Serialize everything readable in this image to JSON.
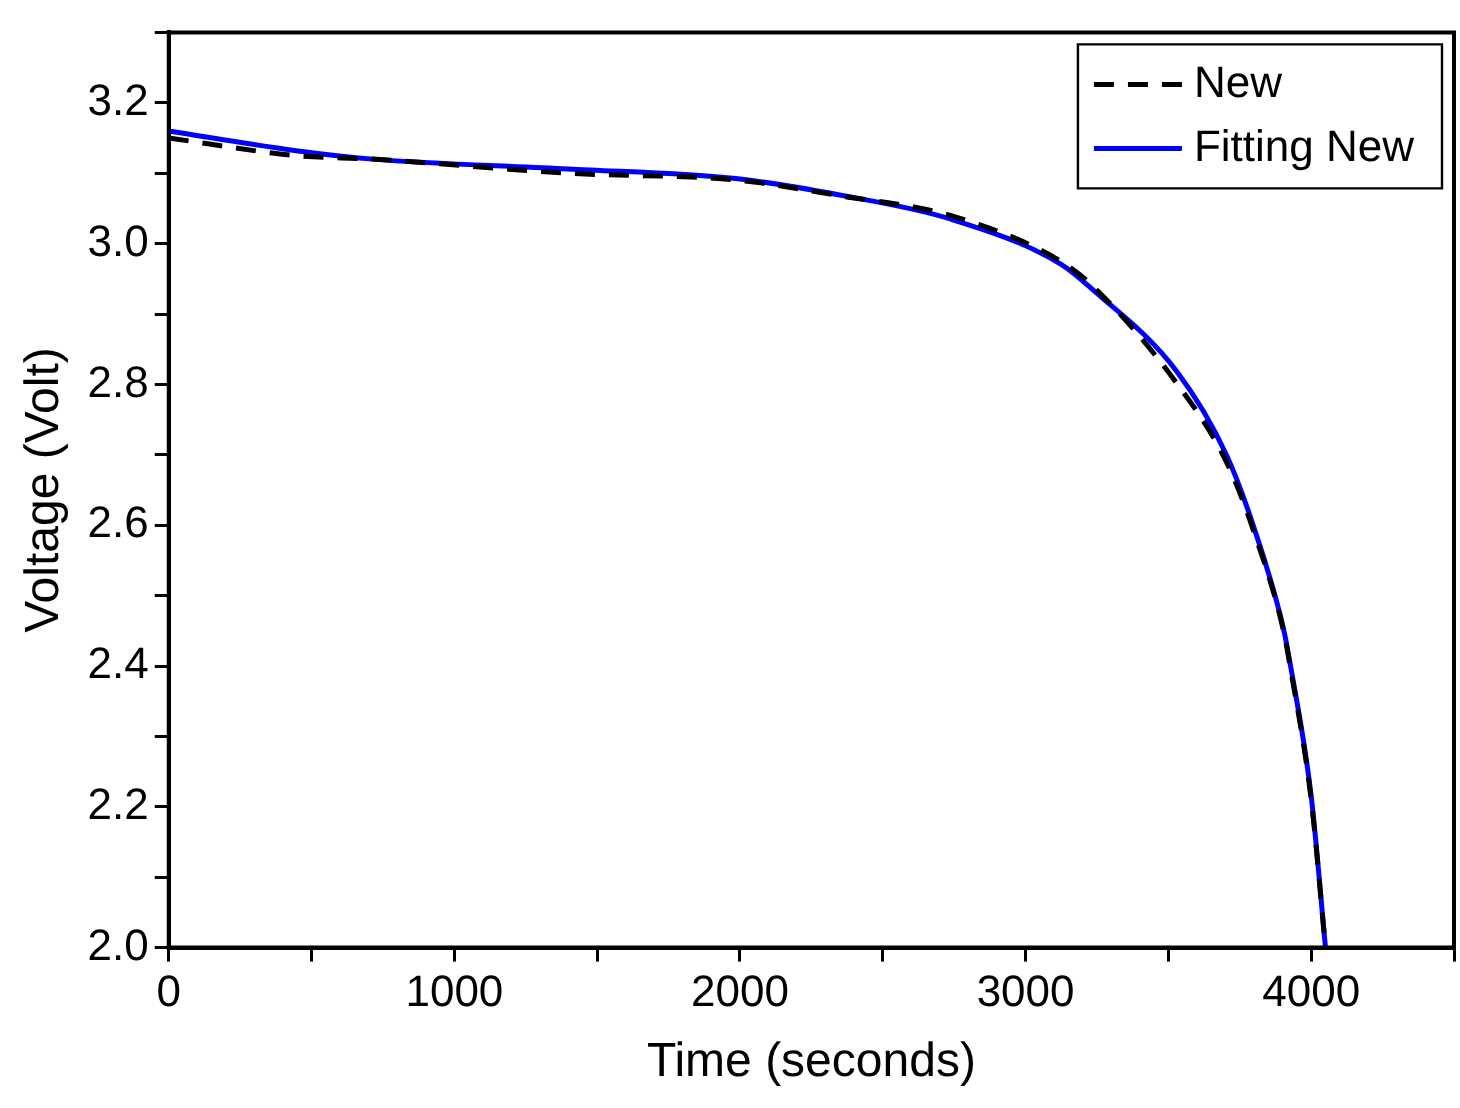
{
  "chart_data": {
    "type": "line",
    "xlabel": "Time (seconds)",
    "ylabel": "Voltage (Volt)",
    "xlim": [
      0,
      4500
    ],
    "ylim": [
      2.0,
      3.3
    ],
    "xticks": [
      0,
      {
        "value": 500,
        "label": null
      },
      1000,
      {
        "value": 1500,
        "label": null
      },
      2000,
      {
        "value": 2500,
        "label": null
      },
      3000,
      {
        "value": 3500,
        "label": null
      },
      4000,
      {
        "value": 4500,
        "label": null
      }
    ],
    "yticks": [
      {
        "value": 2.0,
        "label": "2.0"
      },
      {
        "value": 2.1,
        "label": null
      },
      2.2,
      {
        "value": 2.3,
        "label": null
      },
      2.4,
      {
        "value": 2.5,
        "label": null
      },
      2.6,
      {
        "value": 2.7,
        "label": null
      },
      2.8,
      {
        "value": 2.9,
        "label": null
      },
      {
        "value": 3.0,
        "label": "3.0"
      },
      {
        "value": 3.1,
        "label": null
      },
      3.2,
      {
        "value": 3.3,
        "label": null
      }
    ],
    "grid": false,
    "legend": "top right",
    "marker": "none",
    "series": [
      {
        "name": "New",
        "color": "#000000",
        "line_style": "dashed",
        "x": [
          0,
          446,
          714,
          1398,
          1993,
          2349,
          2736,
          3123,
          3234,
          3532,
          3703,
          3800,
          3903,
          3926,
          4000,
          4050
        ],
        "values": [
          3.15,
          3.125,
          3.12,
          3.1,
          3.09,
          3.068,
          3.04,
          2.975,
          2.94,
          2.8,
          2.69,
          2.59,
          2.45,
          2.4,
          2.21,
          2.0
        ]
      },
      {
        "name": "Fitting New",
        "color": "#0000ff",
        "line_style": "solid",
        "x": [
          0,
          446,
          714,
          1398,
          1993,
          2349,
          2736,
          3123,
          3234,
          3532,
          3703,
          3800,
          3903,
          3926,
          4000,
          4050
        ],
        "values": [
          3.16,
          3.132,
          3.12,
          3.106,
          3.092,
          3.069,
          3.035,
          2.971,
          2.935,
          2.817,
          2.7,
          2.596,
          2.453,
          2.404,
          2.215,
          2.0
        ]
      }
    ]
  }
}
